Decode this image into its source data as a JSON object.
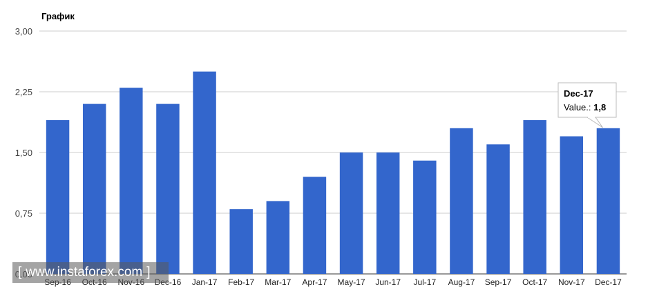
{
  "chart_data": {
    "type": "bar",
    "title": "График",
    "categories": [
      "Sep-16",
      "Oct-16",
      "Nov-16",
      "Dec-16",
      "Jan-17",
      "Feb-17",
      "Mar-17",
      "Apr-17",
      "May-17",
      "Jun-17",
      "Jul-17",
      "Aug-17",
      "Sep-17",
      "Oct-17",
      "Nov-17",
      "Dec-17"
    ],
    "series": [
      {
        "values": [
          1.9,
          2.1,
          2.3,
          2.1,
          2.5,
          0.8,
          0.9,
          1.2,
          1.5,
          1.5,
          1.4,
          1.8,
          1.6,
          1.9,
          1.7,
          1.8
        ]
      }
    ],
    "ylim": [
      0,
      3
    ],
    "yticks": [
      "0,00",
      "0,75",
      "1,50",
      "2,25",
      "3,00"
    ],
    "grid": true,
    "bar_color": "#3366cc",
    "tooltip": {
      "category": "Dec-17",
      "label": "Value.:",
      "value": "1,8"
    }
  },
  "watermark": {
    "open": "[",
    "text": "www.instaforex.com",
    "close": "]"
  }
}
